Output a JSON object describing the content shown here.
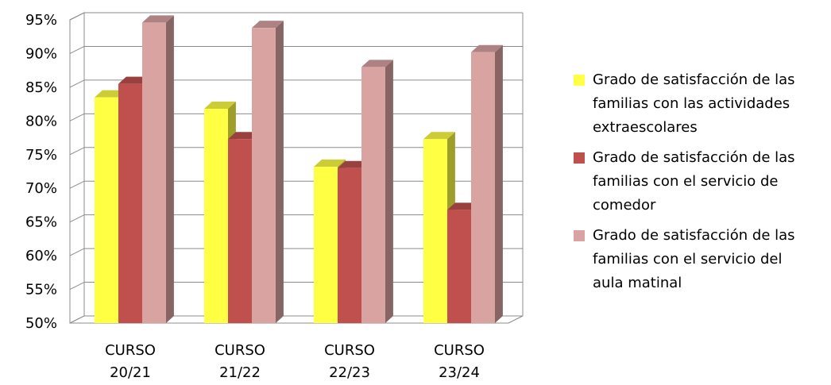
{
  "chart_data": {
    "type": "bar",
    "categories": [
      "CURSO 20/21",
      "CURSO 21/22",
      "CURSO 22/23",
      "CURSO 23/24"
    ],
    "category_lines": [
      [
        "CURSO",
        "20/21"
      ],
      [
        "CURSO",
        "21/22"
      ],
      [
        "CURSO",
        "22/23"
      ],
      [
        "CURSO",
        "23/24"
      ]
    ],
    "series": [
      {
        "name": "Grado de satisfacción de las familias con las actividades extraescolares",
        "name_lines": [
          "Grado de satisfacción de las",
          "familias con las actividades",
          "extraescolares"
        ],
        "color": "#ffff44",
        "values": [
          83.5,
          81.8,
          73.2,
          77.3
        ]
      },
      {
        "name": "Grado de satisfacción de las familias con el servicio de comedor",
        "name_lines": [
          "Grado de satisfacción de las",
          "familias con el servicio de",
          "comedor"
        ],
        "color": "#c0504d",
        "values": [
          85.5,
          77.3,
          73.0,
          66.8
        ]
      },
      {
        "name": "Grado de satisfacción de las familias con el servicio del aula matinal",
        "name_lines": [
          "Grado de satisfacción de las",
          "familias con el servicio del",
          "aula matinal"
        ],
        "color": "#d9a3a2",
        "values": [
          94.6,
          93.8,
          88.0,
          90.2
        ]
      }
    ],
    "y_ticks": [
      "50%",
      "55%",
      "60%",
      "65%",
      "70%",
      "75%",
      "80%",
      "85%",
      "90%",
      "95%"
    ],
    "ylim": [
      50,
      95
    ],
    "grid": true,
    "legend_position": "right",
    "title": "",
    "xlabel": "",
    "ylabel": ""
  }
}
